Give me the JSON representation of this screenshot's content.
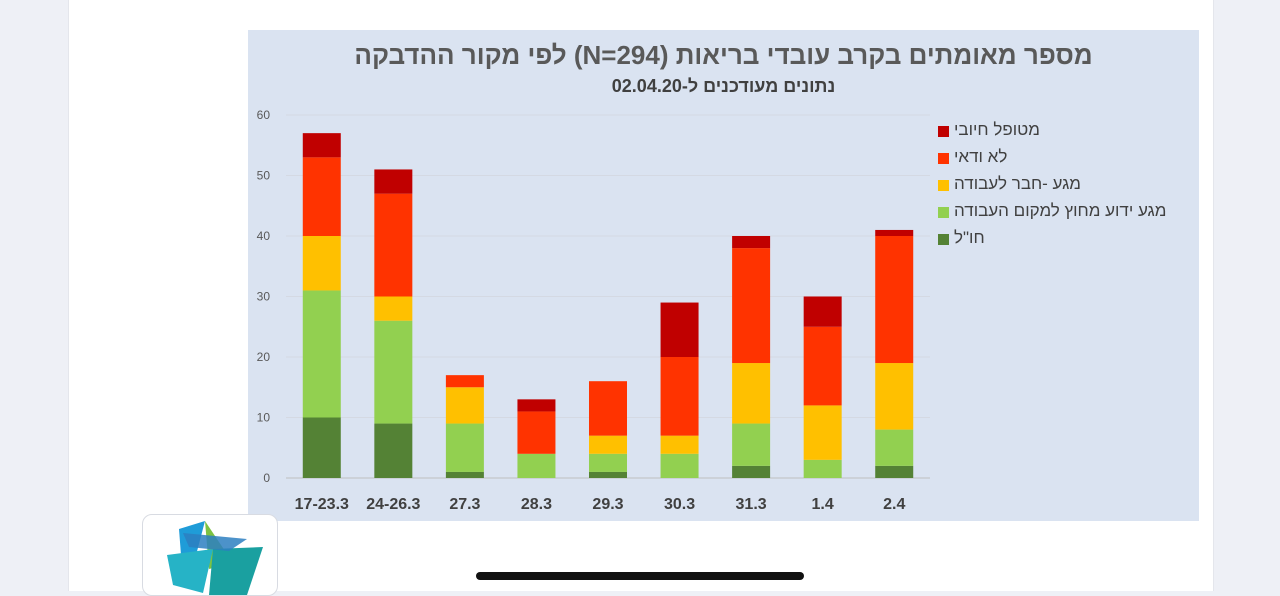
{
  "chart_data": {
    "type": "bar",
    "stacked": true,
    "title": "מספר מאומתים בקרב עובדי בריאות (N=294) לפי מקור ההדבקה",
    "subtitle": "נתונים מעודכנים ל-02.04.20",
    "xlabel": "",
    "ylabel": "",
    "ylim": [
      0,
      60
    ],
    "yticks": [
      0,
      10,
      20,
      30,
      40,
      50,
      60
    ],
    "grid": true,
    "legend_position": "right",
    "categories": [
      "17-23.3",
      "24-26.3",
      "27.3",
      "28.3",
      "29.3",
      "30.3",
      "31.3",
      "1.4",
      "2.4"
    ],
    "series": [
      {
        "name": "חו\"ל",
        "color": "#548235",
        "values": [
          10,
          9,
          1,
          0,
          1,
          0,
          2,
          0,
          2
        ]
      },
      {
        "name": "מגע ידוע מחוץ למקום העבודה",
        "color": "#92d050",
        "values": [
          21,
          17,
          8,
          4,
          3,
          4,
          7,
          3,
          6
        ]
      },
      {
        "name": "מגע -חבר לעבודה",
        "color": "#ffc000",
        "values": [
          9,
          4,
          6,
          0,
          3,
          3,
          10,
          9,
          11
        ]
      },
      {
        "name": "לא ודאי",
        "color": "#ff3300",
        "values": [
          13,
          17,
          2,
          7,
          9,
          13,
          19,
          13,
          21
        ]
      },
      {
        "name": "מטופל חיובי",
        "color": "#c00000",
        "values": [
          4,
          4,
          0,
          2,
          0,
          9,
          2,
          5,
          1
        ]
      }
    ]
  },
  "legend_order": [
    4,
    3,
    2,
    1,
    0
  ]
}
